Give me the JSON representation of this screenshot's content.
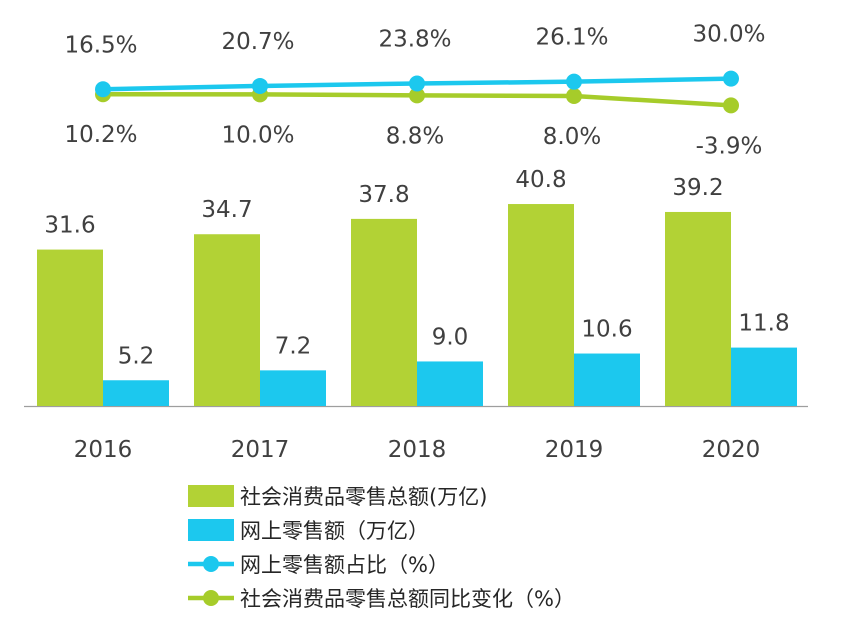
{
  "chart_data": {
    "type": "bar",
    "categories": [
      "2016",
      "2017",
      "2018",
      "2019",
      "2020"
    ],
    "bar_series": [
      {
        "name": "社会消费品零售总额(万亿)",
        "values": [
          31.6,
          34.7,
          37.8,
          40.8,
          39.2
        ],
        "color": "#b2d235"
      },
      {
        "name": "网上零售额（万亿）",
        "values": [
          5.2,
          7.2,
          9.0,
          10.6,
          11.8
        ],
        "color": "#1cc8ee"
      }
    ],
    "line_series": [
      {
        "name": "网上零售额占比（%）",
        "values": [
          16.5,
          20.7,
          23.8,
          26.1,
          30.0
        ],
        "labels": [
          "16.5%",
          "20.7%",
          "23.8%",
          "26.1%",
          "30.0%"
        ],
        "color": "#1cc8ee"
      },
      {
        "name": "社会消费品零售总额同比变化（%）",
        "values": [
          10.2,
          10.0,
          8.8,
          8.0,
          -3.9
        ],
        "labels": [
          "10.2%",
          "10.0%",
          "8.8%",
          "8.0%",
          "-3.9%"
        ],
        "color": "#a6cc2a"
      }
    ],
    "bar_labels": [
      [
        "31.6",
        "34.7",
        "37.8",
        "40.8",
        "39.2"
      ],
      [
        "5.2",
        "7.2",
        "9.0",
        "10.6",
        "11.8"
      ]
    ],
    "grid": false,
    "legend_position": "bottom"
  }
}
